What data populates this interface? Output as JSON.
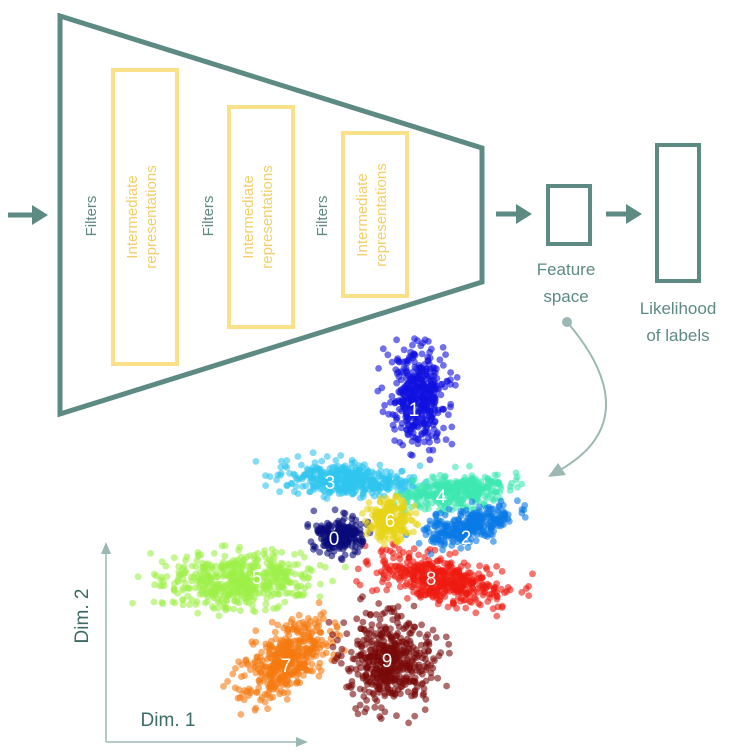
{
  "network": {
    "filters_label": "Filters",
    "intermediate_label_line1": "Intermediate",
    "intermediate_label_line2": "representations",
    "feature_space_line1": "Feature",
    "feature_space_line2": "space",
    "likelihood_line1": "Likelihood",
    "likelihood_line2": "of labels"
  },
  "axes": {
    "x_label": "Dim. 1",
    "y_label": "Dim. 2"
  },
  "clusters": [
    {
      "label": "0",
      "color": "#0a0a7a"
    },
    {
      "label": "1",
      "color": "#1010e0"
    },
    {
      "label": "2",
      "color": "#0a7ae6"
    },
    {
      "label": "3",
      "color": "#2ec4ee"
    },
    {
      "label": "4",
      "color": "#3ee8b0"
    },
    {
      "label": "5",
      "color": "#9ef04a"
    },
    {
      "label": "6",
      "color": "#e8d418"
    },
    {
      "label": "7",
      "color": "#f57a10"
    },
    {
      "label": "8",
      "color": "#ee1a10"
    },
    {
      "label": "9",
      "color": "#7a0a0a"
    }
  ],
  "colors": {
    "outline": "#5e8a84",
    "intermediate_box": "#fbe08a",
    "intermediate_text": "#f3cf6a",
    "arrow": "#5e8a84",
    "curve_arrow": "#9db8b4"
  }
}
